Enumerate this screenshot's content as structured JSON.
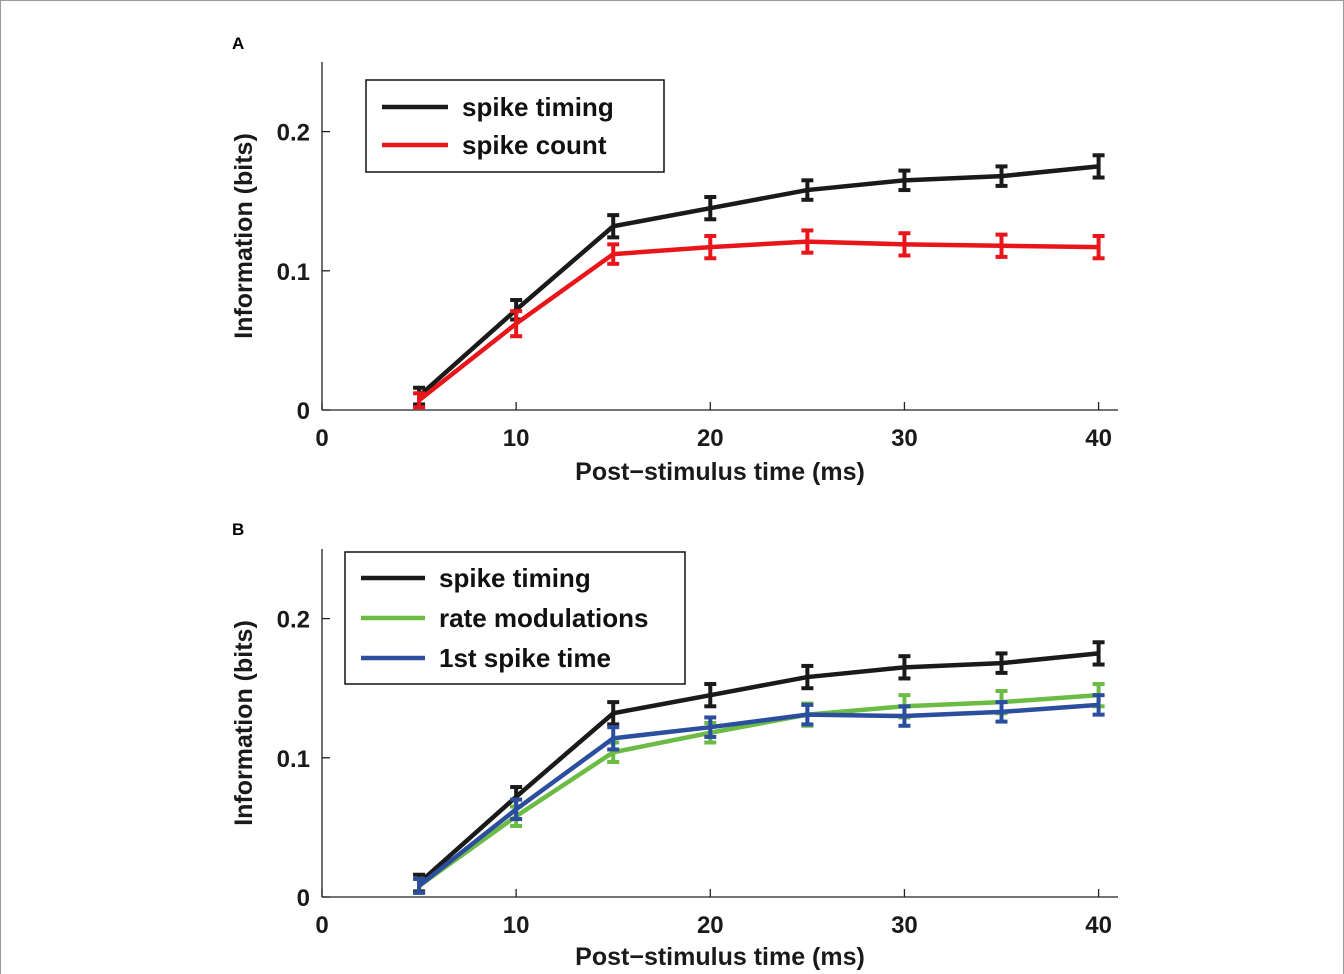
{
  "chart_data": [
    {
      "panel_label": "A",
      "type": "line",
      "title": "",
      "xlabel": "Post−stimulus time (ms)",
      "ylabel": "Information (bits)",
      "xlim": [
        0,
        41
      ],
      "ylim": [
        0,
        0.25
      ],
      "xticks": [
        0,
        10,
        20,
        30,
        40
      ],
      "xtick_labels": [
        "0",
        "10",
        "20",
        "30",
        "40"
      ],
      "yticks": [
        0,
        0.1,
        0.2
      ],
      "ytick_labels": [
        "0",
        "0.1",
        "0.2"
      ],
      "grid": false,
      "legend_position": "top-left",
      "x": [
        5,
        10,
        15,
        20,
        25,
        30,
        35,
        40
      ],
      "series": [
        {
          "name": "spike timing",
          "color": "#1a1a1a",
          "values": [
            0.01,
            0.072,
            0.132,
            0.145,
            0.158,
            0.165,
            0.168,
            0.175
          ],
          "err": [
            0.006,
            0.007,
            0.008,
            0.008,
            0.007,
            0.007,
            0.007,
            0.008
          ]
        },
        {
          "name": "spike count",
          "color": "#e8161b",
          "values": [
            0.007,
            0.062,
            0.112,
            0.117,
            0.121,
            0.119,
            0.118,
            0.117
          ],
          "err": [
            0.005,
            0.009,
            0.007,
            0.008,
            0.008,
            0.008,
            0.008,
            0.008
          ]
        }
      ]
    },
    {
      "panel_label": "B",
      "type": "line",
      "title": "",
      "xlabel": "Post−stimulus time (ms)",
      "ylabel": "Information (bits)",
      "xlim": [
        0,
        41
      ],
      "ylim": [
        0,
        0.25
      ],
      "xticks": [
        0,
        10,
        20,
        30,
        40
      ],
      "xtick_labels": [
        "0",
        "10",
        "20",
        "30",
        "40"
      ],
      "yticks": [
        0,
        0.1,
        0.2
      ],
      "ytick_labels": [
        "0",
        "0.1",
        "0.2"
      ],
      "grid": false,
      "legend_position": "top-left",
      "x": [
        5,
        10,
        15,
        20,
        25,
        30,
        35,
        40
      ],
      "series": [
        {
          "name": "spike timing",
          "color": "#1a1a1a",
          "values": [
            0.01,
            0.072,
            0.132,
            0.145,
            0.158,
            0.165,
            0.168,
            0.175
          ],
          "err": [
            0.006,
            0.007,
            0.008,
            0.008,
            0.008,
            0.008,
            0.007,
            0.008
          ]
        },
        {
          "name": "rate modulations",
          "color": "#6cbb45",
          "values": [
            0.008,
            0.058,
            0.104,
            0.118,
            0.131,
            0.137,
            0.14,
            0.145
          ],
          "err": [
            0.005,
            0.007,
            0.007,
            0.007,
            0.008,
            0.008,
            0.008,
            0.008
          ]
        },
        {
          "name": "1st spike time",
          "color": "#2b4e9f",
          "values": [
            0.008,
            0.063,
            0.114,
            0.122,
            0.131,
            0.13,
            0.133,
            0.138
          ],
          "err": [
            0.005,
            0.007,
            0.008,
            0.007,
            0.007,
            0.007,
            0.007,
            0.007
          ]
        }
      ]
    }
  ]
}
